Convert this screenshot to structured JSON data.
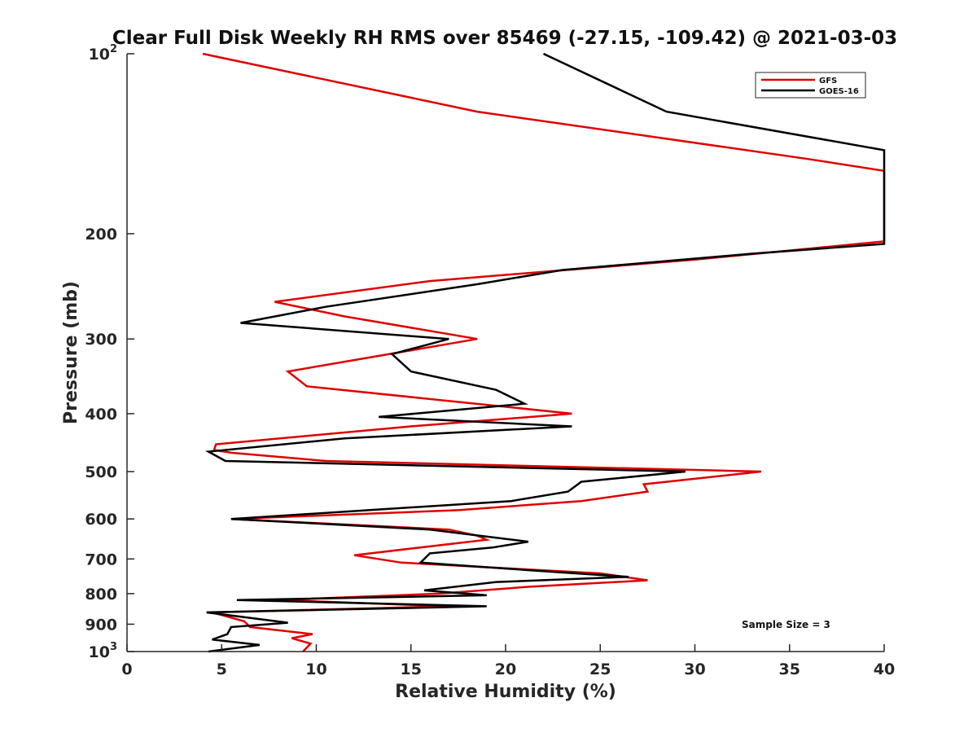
{
  "chart_data": {
    "type": "line",
    "title": "Clear Full Disk Weekly RH RMS over 85469 (-27.15, -109.42) @ 2021-03-03",
    "xlabel": "Relative Humidity (%)",
    "ylabel": "Pressure (mb)",
    "xlim": [
      0,
      40
    ],
    "ylim": [
      100,
      1000
    ],
    "y_scale": "log",
    "y_reversed": true,
    "x_ticks": [
      "0",
      "5",
      "10",
      "15",
      "20",
      "25",
      "30",
      "35",
      "40"
    ],
    "y_ticks": [
      {
        "value": 100,
        "base": "10",
        "exp": "2"
      },
      {
        "value": 200,
        "label": "200"
      },
      {
        "value": 300,
        "label": "300"
      },
      {
        "value": 400,
        "label": "400"
      },
      {
        "value": 500,
        "label": "500"
      },
      {
        "value": 600,
        "label": "600"
      },
      {
        "value": 700,
        "label": "700"
      },
      {
        "value": 800,
        "label": "800"
      },
      {
        "value": 900,
        "label": "900"
      },
      {
        "value": 1000,
        "base": "10",
        "exp": "3"
      }
    ],
    "grid": false,
    "legend_position": "top-right",
    "annotation": "Sample Size = 3",
    "series": [
      {
        "name": "GFS",
        "color": "#e00000",
        "points": [
          [
            4.0,
            100
          ],
          [
            18.5,
            125
          ],
          [
            36.0,
            150
          ],
          [
            40.0,
            157
          ],
          [
            40.0,
            206
          ],
          [
            30.0,
            221
          ],
          [
            21.0,
            233
          ],
          [
            16.0,
            240
          ],
          [
            7.8,
            260
          ],
          [
            11.5,
            275
          ],
          [
            18.5,
            300
          ],
          [
            8.5,
            340
          ],
          [
            9.5,
            360
          ],
          [
            23.5,
            400
          ],
          [
            15.0,
            420
          ],
          [
            4.7,
            450
          ],
          [
            4.6,
            460
          ],
          [
            5.5,
            465
          ],
          [
            10.5,
            480
          ],
          [
            33.5,
            500
          ],
          [
            27.3,
            525
          ],
          [
            27.5,
            540
          ],
          [
            24.0,
            560
          ],
          [
            17.5,
            580
          ],
          [
            5.5,
            600
          ],
          [
            17.0,
            625
          ],
          [
            18.5,
            640
          ],
          [
            19.0,
            650
          ],
          [
            12.0,
            690
          ],
          [
            14.5,
            710
          ],
          [
            25.0,
            740
          ],
          [
            27.5,
            760
          ],
          [
            21.0,
            780
          ],
          [
            16.5,
            800
          ],
          [
            8.0,
            820
          ],
          [
            17.0,
            840
          ],
          [
            4.5,
            860
          ],
          [
            6.2,
            890
          ],
          [
            6.5,
            910
          ],
          [
            9.8,
            935
          ],
          [
            8.7,
            950
          ],
          [
            9.7,
            970
          ],
          [
            9.3,
            1000
          ]
        ]
      },
      {
        "name": "GOES-16",
        "color": "#000000",
        "points": [
          [
            22.0,
            100
          ],
          [
            28.5,
            125
          ],
          [
            40.0,
            145
          ],
          [
            40.0,
            208
          ],
          [
            33.0,
            216
          ],
          [
            23.0,
            230
          ],
          [
            18.5,
            243
          ],
          [
            10.5,
            265
          ],
          [
            6.0,
            282
          ],
          [
            17.0,
            300
          ],
          [
            14.0,
            318
          ],
          [
            15.0,
            340
          ],
          [
            19.5,
            365
          ],
          [
            21.0,
            385
          ],
          [
            13.3,
            405
          ],
          [
            23.5,
            420
          ],
          [
            11.5,
            440
          ],
          [
            4.3,
            463
          ],
          [
            5.2,
            480
          ],
          [
            29.5,
            500
          ],
          [
            24.0,
            520
          ],
          [
            23.3,
            540
          ],
          [
            20.3,
            560
          ],
          [
            5.5,
            600
          ],
          [
            16.0,
            625
          ],
          [
            21.2,
            655
          ],
          [
            19.3,
            670
          ],
          [
            16.0,
            685
          ],
          [
            15.5,
            710
          ],
          [
            21.0,
            730
          ],
          [
            26.5,
            750
          ],
          [
            19.5,
            765
          ],
          [
            15.7,
            790
          ],
          [
            19.0,
            805
          ],
          [
            5.8,
            820
          ],
          [
            19.0,
            840
          ],
          [
            4.2,
            860
          ],
          [
            8.5,
            895
          ],
          [
            5.5,
            910
          ],
          [
            5.3,
            935
          ],
          [
            4.5,
            955
          ],
          [
            7.0,
            975
          ],
          [
            4.3,
            1000
          ]
        ]
      }
    ]
  }
}
